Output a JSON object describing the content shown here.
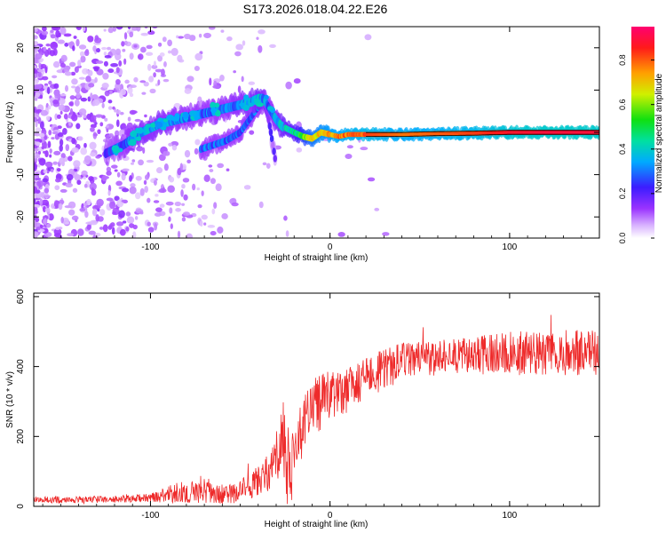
{
  "title": "S173.2026.018.04.22.E26",
  "colors": {
    "snr_line": "#ee2a2a",
    "axis": "#000000",
    "colorbar": [
      "#ffffff",
      "#cc88ff",
      "#7700ee",
      "#2222ff",
      "#00c8ff",
      "#00e060",
      "#f0f000",
      "#ff8800",
      "#ff1010",
      "#ff0080"
    ]
  },
  "chart_data": [
    {
      "type": "heatmap",
      "title": "",
      "xlabel": "Height of straight line (km)",
      "ylabel": "Frequency (Hz)",
      "xlim": [
        -165,
        150
      ],
      "ylim": [
        -25,
        25
      ],
      "xticks": [
        -100,
        0,
        100
      ],
      "xtick_labels": [
        "-100",
        "0",
        "100"
      ],
      "yticks": [
        -20,
        -10,
        0,
        10,
        20
      ],
      "ytick_labels": [
        "-20",
        "-10",
        "0",
        "10",
        "20"
      ],
      "colorbar": {
        "label": "Normalized spectral amplitude",
        "range": [
          0.0,
          0.95
        ],
        "ticks": [
          0.0,
          0.2,
          0.4,
          0.6,
          0.8
        ],
        "tick_labels": [
          "0.0",
          "0.2",
          "0.4",
          "0.6",
          "0.8"
        ]
      },
      "ridge": {
        "x": [
          -125,
          -115,
          -105,
          -95,
          -85,
          -75,
          -65,
          -55,
          -45,
          -40,
          -37,
          -33,
          -30,
          -27,
          -20,
          -15,
          -10,
          -5,
          0,
          5,
          10,
          20,
          40,
          60,
          80,
          100,
          120,
          150
        ],
        "y": [
          -5,
          -3,
          0,
          2,
          3,
          4,
          5,
          6,
          7,
          8,
          8,
          5,
          3,
          1.5,
          0,
          -1,
          -1.5,
          0,
          -0.5,
          -1,
          -0.5,
          -0.5,
          -0.5,
          -0.3,
          -0.2,
          0,
          0,
          0
        ],
        "amplitude": [
          0.25,
          0.3,
          0.35,
          0.35,
          0.32,
          0.3,
          0.3,
          0.32,
          0.35,
          0.4,
          0.35,
          0.3,
          0.35,
          0.4,
          0.45,
          0.6,
          0.7,
          0.75,
          0.78,
          0.8,
          0.82,
          0.85,
          0.8,
          0.82,
          0.85,
          0.9,
          0.92,
          0.92
        ]
      },
      "branch": {
        "x": [
          -72,
          -65,
          -58,
          -50,
          -45,
          -40,
          -37,
          -35,
          -33,
          -31,
          -30
        ],
        "y": [
          -4,
          -3,
          -2,
          0,
          3,
          6,
          7,
          5,
          0,
          -5,
          -8
        ],
        "amplitude": [
          0.3,
          0.3,
          0.3,
          0.3,
          0.3,
          0.3,
          0.3,
          0.25,
          0.2,
          0.15,
          0.15
        ]
      }
    },
    {
      "type": "line",
      "title": "",
      "xlabel": "Height of straight line (km)",
      "ylabel": "SNR (10 * v/v)",
      "xlim": [
        -165,
        150
      ],
      "ylim": [
        0,
        610
      ],
      "xticks": [
        -100,
        0,
        100
      ],
      "xtick_labels": [
        "-100",
        "0",
        "100"
      ],
      "yticks": [
        0,
        200,
        400,
        600
      ],
      "ytick_labels": [
        "0",
        "200",
        "400",
        "600"
      ],
      "series": [
        {
          "name": "SNR",
          "trend_x": [
            -165,
            -120,
            -100,
            -90,
            -80,
            -70,
            -60,
            -50,
            -40,
            -30,
            -25,
            -22,
            -20,
            -15,
            -10,
            -5,
            0,
            5,
            10,
            15,
            20,
            30,
            40,
            60,
            80,
            100,
            120,
            150
          ],
          "trend_y": [
            18,
            20,
            25,
            35,
            45,
            40,
            35,
            45,
            70,
            130,
            180,
            100,
            150,
            240,
            280,
            300,
            320,
            320,
            330,
            350,
            370,
            390,
            420,
            425,
            430,
            440,
            440,
            440
          ],
          "noise_amplitude": [
            10,
            10,
            12,
            25,
            35,
            30,
            28,
            35,
            45,
            80,
            150,
            80,
            90,
            90,
            80,
            80,
            70,
            65,
            65,
            60,
            55,
            60,
            50,
            50,
            55,
            60,
            65,
            65
          ]
        }
      ]
    }
  ]
}
